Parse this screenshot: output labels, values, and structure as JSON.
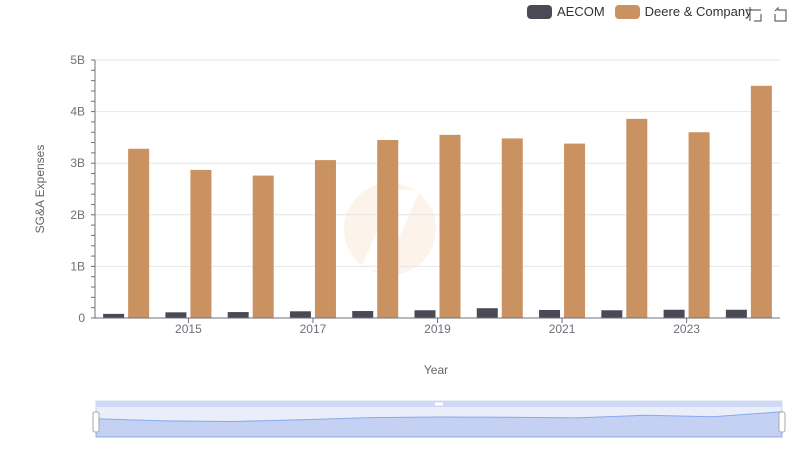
{
  "colors": {
    "aecom": "#4a4a56",
    "deere": "#c99260",
    "axis": "#6e7079",
    "grid": "#e6e6e6",
    "zoom_fill": "#d4defa",
    "zoom_line": "#8fb0f7"
  },
  "legend": {
    "items": [
      "AECOM",
      "Deere & Company"
    ]
  },
  "toolbox": {
    "icons": [
      "zoom-icon",
      "restore-icon"
    ]
  },
  "chart_data": {
    "type": "bar",
    "xlabel": "Year",
    "ylabel": "SG&A Expenses",
    "ylim": [
      0,
      5000000000
    ],
    "y_ticks": [
      "0",
      "1B",
      "2B",
      "3B",
      "4B",
      "5B"
    ],
    "x_tick_labels": [
      "2015",
      "2017",
      "2019",
      "2021",
      "2023"
    ],
    "categories": [
      "2014",
      "2015",
      "2016",
      "2017",
      "2018",
      "2019",
      "2020",
      "2021",
      "2022",
      "2023",
      "2024"
    ],
    "series": [
      {
        "name": "AECOM",
        "values": [
          80000000,
          110000000,
          115000000,
          130000000,
          135000000,
          150000000,
          190000000,
          155000000,
          150000000,
          160000000,
          160000000
        ]
      },
      {
        "name": "Deere & Company",
        "values": [
          3280000000,
          2870000000,
          2760000000,
          3060000000,
          3450000000,
          3550000000,
          3480000000,
          3380000000,
          3860000000,
          3600000000,
          4500000000
        ]
      }
    ],
    "grid": true,
    "legend_position": "top-right",
    "data_zoom": true
  }
}
